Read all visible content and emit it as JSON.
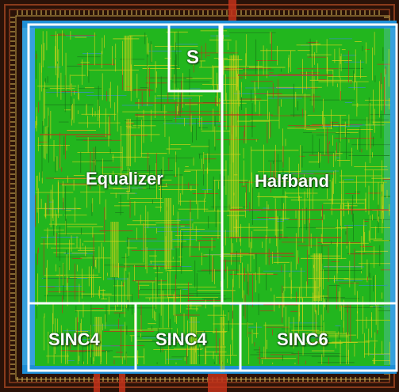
{
  "labels": {
    "s_block": "S",
    "equalizer": "Equalizer",
    "halfband": "Halfband",
    "sinc4_left": "SINC4",
    "sinc4_mid": "SINC4",
    "sinc6": "SINC6"
  },
  "colors": {
    "background": "#ffffff",
    "frame_dark": "#2a1208",
    "frame_rail": "#8a3b1c",
    "frame_pad": "#c2a24a",
    "core_green": "#22b61e",
    "cell_yellow": "#d8d21a",
    "metal_red": "#c2331a",
    "rail_blue": "#1f8fd6",
    "block_outline": "#ffffff"
  }
}
